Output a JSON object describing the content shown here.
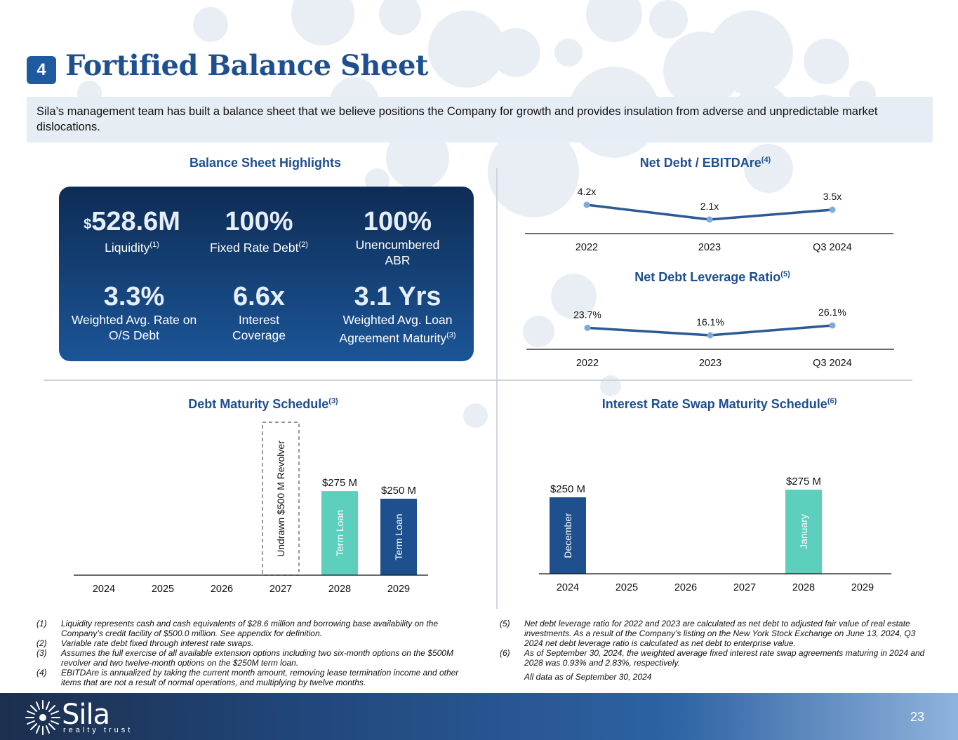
{
  "header": {
    "section_number": "4",
    "title": "Fortified Balance Sheet",
    "intro": "Sila’s management team has built a balance sheet that we believe positions the Company for growth and provides insulation from adverse and unpredictable market dislocations."
  },
  "highlights": {
    "heading": "Balance Sheet Highlights",
    "items": [
      {
        "prefix": "$",
        "value": "528.6M",
        "label": "Liquidity",
        "sup": "(1)"
      },
      {
        "value": "100%",
        "label": "Fixed Rate Debt",
        "sup": "(2)"
      },
      {
        "value": "100%",
        "label": "Unencumbered ABR"
      },
      {
        "value": "3.3%",
        "label": "Weighted Avg. Rate on O/S Debt"
      },
      {
        "value": "6.6x",
        "label": "Interest Coverage"
      },
      {
        "value": "3.1 Yrs",
        "label": "Weighted Avg. Loan Agreement Maturity",
        "sup": "(3)"
      }
    ]
  },
  "chart_data": [
    {
      "id": "net-debt-ebitdare",
      "type": "line",
      "title": "Net Debt / EBITDAre",
      "title_sup": "(4)",
      "categories": [
        "2022",
        "2023",
        "Q3 2024"
      ],
      "values": [
        4.2,
        2.1,
        3.5
      ],
      "labels": [
        "4.2x",
        "2.1x",
        "3.5x"
      ],
      "color": "#2b5a94"
    },
    {
      "id": "net-debt-leverage",
      "type": "line",
      "title": "Net Debt Leverage Ratio",
      "title_sup": "(5)",
      "categories": [
        "2022",
        "2023",
        "Q3 2024"
      ],
      "values": [
        23.7,
        16.1,
        26.1
      ],
      "labels": [
        "23.7%",
        "16.1%",
        "26.1%"
      ],
      "color": "#2b5a94"
    },
    {
      "id": "debt-maturity",
      "type": "bar",
      "title": "Debt Maturity Schedule",
      "title_sup": "(3)",
      "categories": [
        "2024",
        "2025",
        "2026",
        "2027",
        "2028",
        "2029"
      ],
      "unit": "$M",
      "bars": [
        {
          "category": "2027",
          "value": 500,
          "value_label": "",
          "inner_label": "Undrawn $500 M Revolver",
          "style": "dashed"
        },
        {
          "category": "2028",
          "value": 275,
          "value_label": "$275 M",
          "inner_label": "Term Loan",
          "color": "#5ccfbd"
        },
        {
          "category": "2029",
          "value": 250,
          "value_label": "$250 M",
          "inner_label": "Term Loan",
          "color": "#1e4f8f"
        }
      ]
    },
    {
      "id": "swap-maturity",
      "type": "bar",
      "title": "Interest Rate Swap Maturity Schedule",
      "title_sup": "(6)",
      "categories": [
        "2024",
        "2025",
        "2026",
        "2027",
        "2028",
        "2029"
      ],
      "unit": "$M",
      "bars": [
        {
          "category": "2024",
          "value": 250,
          "value_label": "$250 M",
          "inner_label": "December",
          "color": "#1e4f8f"
        },
        {
          "category": "2028",
          "value": 275,
          "value_label": "$275 M",
          "inner_label": "January",
          "color": "#5ccfbd"
        }
      ]
    }
  ],
  "footnotes_left": [
    {
      "key": "(1)",
      "text": "Liquidity represents cash and cash equivalents of $28.6 million and borrowing base availability on the Company’s credit facility of $500.0 million. See appendix for definition."
    },
    {
      "key": "(2)",
      "text": "Variable rate debt fixed through interest rate swaps."
    },
    {
      "key": "(3)",
      "text": "Assumes the full exercise of all available extension options including two six-month options on the $500M revolver and two twelve-month options on the $250M term loan."
    },
    {
      "key": "(4)",
      "text": "EBITDAre is annualized by taking the current month amount, removing lease termination income and other items that are not a result of normal operations, and multiplying by twelve months."
    }
  ],
  "footnotes_right": [
    {
      "key": "(5)",
      "text": "Net debt leverage ratio for 2022 and 2023 are calculated as net debt to adjusted fair value of real estate investments. As a result of the Company’s listing on the New York Stock Exchange on June 13, 2024, Q3 2024 net debt leverage ratio is calculated as net debt to enterprise value."
    },
    {
      "key": "(6)",
      "text": "As of September 30, 2024, the weighted average fixed interest rate swap agreements maturing in 2024 and 2028 was 0.93% and 2.83%, respectively."
    }
  ],
  "as_of": "All data as of September 30, 2024",
  "footer": {
    "logo_name": "Sila",
    "logo_sub": "realty trust",
    "page_number": "23"
  }
}
